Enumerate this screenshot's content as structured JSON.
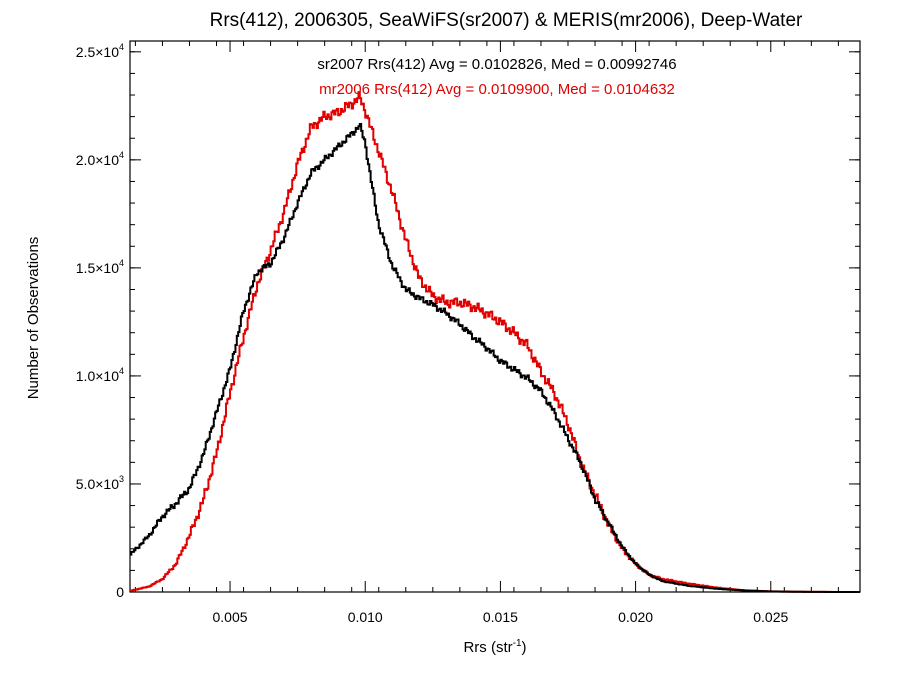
{
  "chart_data": {
    "type": "line",
    "title": "Rrs(412), 2006305, SeaWiFS(sr2007) & MERIS(mr2006), Deep-Water",
    "xlabel": "Rrs (str",
    "xlabel_sup": "-1",
    "xlabel_close": ")",
    "ylabel": "Number of Observations",
    "xlim": [
      0.0013,
      0.0283
    ],
    "ylim": [
      0,
      25500
    ],
    "x_ticks": [
      {
        "value": 0.005,
        "label": "0.005"
      },
      {
        "value": 0.01,
        "label": "0.010"
      },
      {
        "value": 0.015,
        "label": "0.015"
      },
      {
        "value": 0.02,
        "label": "0.020"
      },
      {
        "value": 0.025,
        "label": "0.025"
      }
    ],
    "y_ticks": [
      {
        "value": 0,
        "mantissa": "0",
        "exponent": ""
      },
      {
        "value": 5000,
        "mantissa": "5.0×10",
        "exponent": "3"
      },
      {
        "value": 10000,
        "mantissa": "1.0×10",
        "exponent": "4"
      },
      {
        "value": 15000,
        "mantissa": "1.5×10",
        "exponent": "4"
      },
      {
        "value": 20000,
        "mantissa": "2.0×10",
        "exponent": "4"
      },
      {
        "value": 25000,
        "mantissa": "2.5×10",
        "exponent": "4"
      }
    ],
    "legend_placement": "top-center",
    "annotations": [
      {
        "text": "sr2007 Rrs(412) Avg = 0.0102826, Med = 0.00992746",
        "color": "#000000"
      },
      {
        "text": "mr2006 Rrs(412) Avg = 0.0109900, Med = 0.0104632",
        "color": "#e00000"
      }
    ],
    "series": [
      {
        "color": "#000000",
        "x": [
          0.0013,
          0.002,
          0.0025,
          0.003,
          0.0035,
          0.004,
          0.0045,
          0.005,
          0.0055,
          0.006,
          0.0065,
          0.007,
          0.0075,
          0.008,
          0.0085,
          0.009,
          0.0095,
          0.0098,
          0.01,
          0.0102,
          0.0105,
          0.011,
          0.0115,
          0.012,
          0.0125,
          0.013,
          0.0135,
          0.014,
          0.0145,
          0.015,
          0.0155,
          0.016,
          0.0165,
          0.017,
          0.0175,
          0.018,
          0.0185,
          0.019,
          0.0195,
          0.02,
          0.0205,
          0.021,
          0.022,
          0.023,
          0.024,
          0.025,
          0.026,
          0.027,
          0.0283
        ],
        "y": [
          1700,
          2600,
          3500,
          4100,
          4800,
          6300,
          8300,
          10300,
          13000,
          14800,
          15200,
          16400,
          18000,
          19400,
          20000,
          20600,
          21200,
          21600,
          20800,
          19200,
          17000,
          15100,
          14000,
          13600,
          13300,
          12900,
          12400,
          11800,
          11300,
          10700,
          10300,
          9900,
          9300,
          8300,
          7100,
          5900,
          4300,
          3200,
          2100,
          1300,
          800,
          500,
          280,
          150,
          70,
          25,
          10,
          3,
          0
        ]
      },
      {
        "color": "#e00000",
        "x": [
          0.0013,
          0.002,
          0.0025,
          0.003,
          0.0035,
          0.004,
          0.0045,
          0.005,
          0.0055,
          0.006,
          0.0065,
          0.007,
          0.0075,
          0.008,
          0.0085,
          0.009,
          0.0095,
          0.0098,
          0.01,
          0.0102,
          0.0105,
          0.011,
          0.0115,
          0.012,
          0.0125,
          0.013,
          0.0135,
          0.014,
          0.0145,
          0.015,
          0.0155,
          0.016,
          0.0165,
          0.017,
          0.0175,
          0.018,
          0.0185,
          0.019,
          0.0195,
          0.02,
          0.0205,
          0.021,
          0.022,
          0.023,
          0.024,
          0.025,
          0.026,
          0.027,
          0.0283
        ],
        "y": [
          50,
          250,
          600,
          1300,
          2600,
          4200,
          6400,
          9200,
          11800,
          14200,
          15800,
          17600,
          19800,
          21500,
          22000,
          22200,
          22600,
          22900,
          22300,
          21500,
          20400,
          18500,
          16300,
          14500,
          13700,
          13400,
          13400,
          13200,
          12900,
          12500,
          12000,
          11400,
          10200,
          9200,
          7800,
          5900,
          4500,
          3100,
          2000,
          1300,
          800,
          600,
          380,
          200,
          80,
          30,
          12,
          4,
          0
        ]
      }
    ]
  }
}
